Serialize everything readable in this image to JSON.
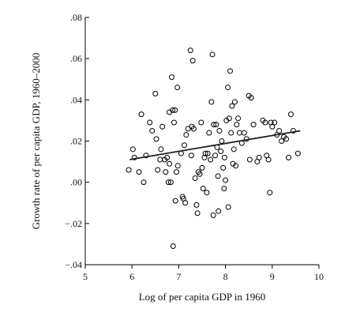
{
  "chart_data": {
    "type": "scatter",
    "title": "",
    "xlabel": "Log of per capita GDP in 1960",
    "ylabel": "Growth rate of per capita GDP, 1960–2000",
    "xlim": [
      5,
      10
    ],
    "ylim": [
      -0.04,
      0.08
    ],
    "x_ticks": [
      5,
      6,
      7,
      8,
      9,
      10
    ],
    "x_tick_labels": [
      "5",
      "6",
      "7",
      "8",
      "9",
      "10"
    ],
    "y_ticks": [
      -0.04,
      -0.02,
      0.0,
      0.02,
      0.04,
      0.06,
      0.08
    ],
    "y_tick_labels": [
      "−.04",
      "−.02",
      ".00",
      ".02",
      ".04",
      ".06",
      ".08"
    ],
    "grid": false,
    "legend": "none",
    "marker": "open-circle",
    "trend_line": {
      "x": [
        5.95,
        9.6
      ],
      "y": [
        0.011,
        0.025
      ]
    },
    "points": [
      [
        5.93,
        0.006
      ],
      [
        6.02,
        0.016
      ],
      [
        6.05,
        0.012
      ],
      [
        6.15,
        0.005
      ],
      [
        6.2,
        0.033
      ],
      [
        6.25,
        0.0
      ],
      [
        6.3,
        0.013
      ],
      [
        6.38,
        0.029
      ],
      [
        6.43,
        0.025
      ],
      [
        6.5,
        0.043
      ],
      [
        6.52,
        0.021
      ],
      [
        6.55,
        0.006
      ],
      [
        6.6,
        0.011
      ],
      [
        6.62,
        0.016
      ],
      [
        6.65,
        0.027
      ],
      [
        6.7,
        0.011
      ],
      [
        6.72,
        0.005
      ],
      [
        6.75,
        0.012
      ],
      [
        6.78,
        0.0
      ],
      [
        6.8,
        0.009
      ],
      [
        6.8,
        0.034
      ],
      [
        6.83,
        0.0
      ],
      [
        6.85,
        0.051
      ],
      [
        6.87,
        0.035
      ],
      [
        6.88,
        -0.031
      ],
      [
        6.9,
        0.029
      ],
      [
        6.92,
        0.035
      ],
      [
        6.93,
        -0.009
      ],
      [
        6.95,
        0.005
      ],
      [
        6.97,
        0.046
      ],
      [
        6.98,
        0.008
      ],
      [
        7.05,
        0.014
      ],
      [
        7.08,
        -0.007
      ],
      [
        7.1,
        -0.008
      ],
      [
        7.12,
        0.018
      ],
      [
        7.14,
        -0.01
      ],
      [
        7.16,
        0.023
      ],
      [
        7.2,
        0.026
      ],
      [
        7.25,
        0.064
      ],
      [
        7.27,
        0.013
      ],
      [
        7.28,
        0.027
      ],
      [
        7.3,
        0.059
      ],
      [
        7.32,
        0.026
      ],
      [
        7.35,
        0.002
      ],
      [
        7.38,
        -0.011
      ],
      [
        7.4,
        -0.015
      ],
      [
        7.42,
        0.005
      ],
      [
        7.45,
        0.004
      ],
      [
        7.48,
        0.029
      ],
      [
        7.5,
        0.007
      ],
      [
        7.52,
        -0.003
      ],
      [
        7.55,
        0.012
      ],
      [
        7.57,
        0.014
      ],
      [
        7.6,
        -0.005
      ],
      [
        7.62,
        0.014
      ],
      [
        7.65,
        0.024
      ],
      [
        7.68,
        0.011
      ],
      [
        7.7,
        0.039
      ],
      [
        7.72,
        0.062
      ],
      [
        7.74,
        -0.016
      ],
      [
        7.75,
        0.028
      ],
      [
        7.78,
        0.013
      ],
      [
        7.8,
        0.028
      ],
      [
        7.82,
        0.017
      ],
      [
        7.84,
        0.003
      ],
      [
        7.85,
        -0.014
      ],
      [
        7.87,
        0.025
      ],
      [
        7.9,
        0.015
      ],
      [
        7.92,
        0.02
      ],
      [
        7.95,
        0.007
      ],
      [
        7.97,
        -0.003
      ],
      [
        7.98,
        0.012
      ],
      [
        8.0,
        0.001
      ],
      [
        8.02,
        0.03
      ],
      [
        8.05,
        0.046
      ],
      [
        8.06,
        -0.012
      ],
      [
        8.08,
        0.031
      ],
      [
        8.1,
        0.054
      ],
      [
        8.12,
        0.024
      ],
      [
        8.14,
        0.037
      ],
      [
        8.16,
        0.009
      ],
      [
        8.18,
        0.016
      ],
      [
        8.2,
        0.039
      ],
      [
        8.22,
        0.008
      ],
      [
        8.24,
        0.028
      ],
      [
        8.27,
        0.031
      ],
      [
        8.3,
        0.024
      ],
      [
        8.35,
        0.019
      ],
      [
        8.4,
        0.024
      ],
      [
        8.45,
        0.021
      ],
      [
        8.5,
        0.042
      ],
      [
        8.52,
        0.011
      ],
      [
        8.55,
        0.041
      ],
      [
        8.6,
        0.028
      ],
      [
        8.68,
        0.01
      ],
      [
        8.72,
        0.012
      ],
      [
        8.8,
        0.03
      ],
      [
        8.85,
        0.029
      ],
      [
        8.88,
        0.013
      ],
      [
        8.92,
        0.011
      ],
      [
        8.95,
        -0.005
      ],
      [
        8.97,
        0.029
      ],
      [
        9.0,
        0.027
      ],
      [
        9.05,
        0.029
      ],
      [
        9.1,
        0.023
      ],
      [
        9.15,
        0.025
      ],
      [
        9.2,
        0.02
      ],
      [
        9.25,
        0.022
      ],
      [
        9.3,
        0.021
      ],
      [
        9.35,
        0.012
      ],
      [
        9.4,
        0.033
      ],
      [
        9.45,
        0.025
      ],
      [
        9.55,
        0.014
      ]
    ]
  }
}
